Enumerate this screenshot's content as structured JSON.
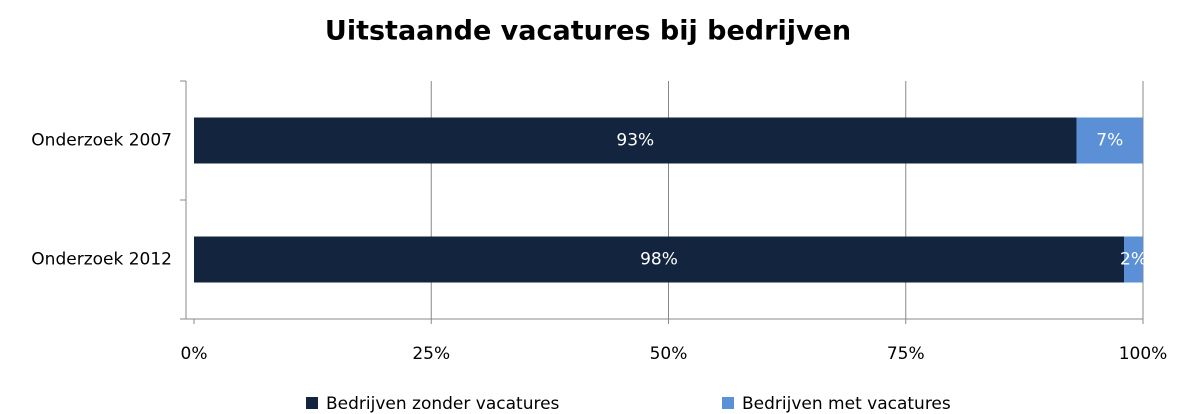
{
  "chart_data": {
    "type": "stacked-bar-horizontal",
    "title": "Uitstaande vacatures bij bedrijven",
    "categories": [
      "Onderzoek 2007",
      "Onderzoek 2012"
    ],
    "series": [
      {
        "name": "Bedrijven zonder vacatures",
        "color": "#13243f",
        "values": [
          93,
          98
        ],
        "value_labels": [
          "93%",
          "98%"
        ]
      },
      {
        "name": "Bedrijven met vacatures",
        "color": "#5b8fd6",
        "values": [
          7,
          2
        ],
        "value_labels": [
          "7%",
          "2%"
        ]
      }
    ],
    "xlim": [
      0,
      100
    ],
    "xticks": [
      {
        "value": 0,
        "label": "0%"
      },
      {
        "value": 25,
        "label": "25%"
      },
      {
        "value": 50,
        "label": "50%"
      },
      {
        "value": 75,
        "label": "75%"
      },
      {
        "value": 100,
        "label": "100%"
      }
    ],
    "grid": true,
    "legend": "bottom"
  }
}
